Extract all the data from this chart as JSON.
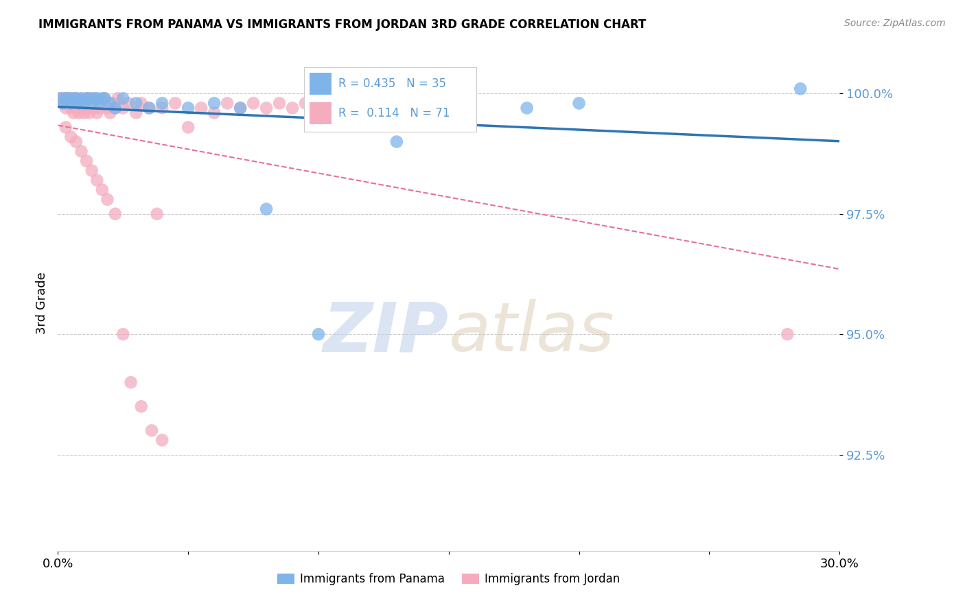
{
  "title": "IMMIGRANTS FROM PANAMA VS IMMIGRANTS FROM JORDAN 3RD GRADE CORRELATION CHART",
  "source": "Source: ZipAtlas.com",
  "ylabel": "3rd Grade",
  "ytick_labels": [
    "100.0%",
    "97.5%",
    "95.0%",
    "92.5%"
  ],
  "ytick_values": [
    1.0,
    0.975,
    0.95,
    0.925
  ],
  "xlim": [
    0.0,
    0.3
  ],
  "ylim": [
    0.905,
    1.008
  ],
  "legend_label_panama": "Immigrants from Panama",
  "legend_label_jordan": "Immigrants from Jordan",
  "R_panama": 0.435,
  "N_panama": 35,
  "R_jordan": 0.114,
  "N_jordan": 71,
  "color_panama": "#7EB4EA",
  "color_jordan": "#F4ACBE",
  "trendline_panama_color": "#2E75B6",
  "trendline_jordan_color": "#E87090",
  "watermark_zip": "ZIP",
  "watermark_atlas": "atlas",
  "panama_x": [
    0.001,
    0.002,
    0.003,
    0.004,
    0.005,
    0.006,
    0.007,
    0.008,
    0.009,
    0.01,
    0.011,
    0.012,
    0.013,
    0.014,
    0.015,
    0.016,
    0.017,
    0.018,
    0.02,
    0.022,
    0.025,
    0.03,
    0.035,
    0.04,
    0.05,
    0.06,
    0.07,
    0.08,
    0.1,
    0.12,
    0.13,
    0.15,
    0.18,
    0.2,
    0.285
  ],
  "panama_y": [
    0.999,
    0.998,
    0.999,
    0.999,
    0.998,
    0.999,
    0.999,
    0.998,
    0.999,
    0.998,
    0.999,
    0.999,
    0.998,
    0.999,
    0.999,
    0.998,
    0.999,
    0.999,
    0.998,
    0.997,
    0.999,
    0.998,
    0.997,
    0.998,
    0.997,
    0.998,
    0.997,
    0.976,
    0.95,
    0.997,
    0.99,
    0.998,
    0.997,
    0.998,
    1.001
  ],
  "jordan_x": [
    0.001,
    0.002,
    0.002,
    0.003,
    0.003,
    0.004,
    0.004,
    0.005,
    0.005,
    0.006,
    0.006,
    0.007,
    0.007,
    0.008,
    0.008,
    0.009,
    0.009,
    0.01,
    0.01,
    0.011,
    0.011,
    0.012,
    0.012,
    0.013,
    0.014,
    0.015,
    0.015,
    0.016,
    0.017,
    0.018,
    0.019,
    0.02,
    0.021,
    0.022,
    0.023,
    0.025,
    0.027,
    0.03,
    0.032,
    0.035,
    0.038,
    0.04,
    0.045,
    0.05,
    0.055,
    0.06,
    0.065,
    0.07,
    0.075,
    0.08,
    0.085,
    0.09,
    0.095,
    0.1,
    0.11,
    0.003,
    0.005,
    0.007,
    0.009,
    0.011,
    0.013,
    0.015,
    0.017,
    0.019,
    0.022,
    0.025,
    0.028,
    0.032,
    0.036,
    0.04,
    0.28
  ],
  "jordan_y": [
    0.999,
    0.998,
    0.999,
    0.997,
    0.999,
    0.998,
    0.999,
    0.997,
    0.999,
    0.996,
    0.998,
    0.997,
    0.999,
    0.996,
    0.998,
    0.997,
    0.999,
    0.996,
    0.998,
    0.997,
    0.999,
    0.996,
    0.998,
    0.999,
    0.997,
    0.996,
    0.998,
    0.997,
    0.998,
    0.999,
    0.997,
    0.996,
    0.998,
    0.997,
    0.999,
    0.997,
    0.998,
    0.996,
    0.998,
    0.997,
    0.975,
    0.997,
    0.998,
    0.993,
    0.997,
    0.996,
    0.998,
    0.997,
    0.998,
    0.997,
    0.998,
    0.997,
    0.998,
    0.997,
    0.998,
    0.993,
    0.991,
    0.99,
    0.988,
    0.986,
    0.984,
    0.982,
    0.98,
    0.978,
    0.975,
    0.95,
    0.94,
    0.935,
    0.93,
    0.928,
    0.95
  ]
}
